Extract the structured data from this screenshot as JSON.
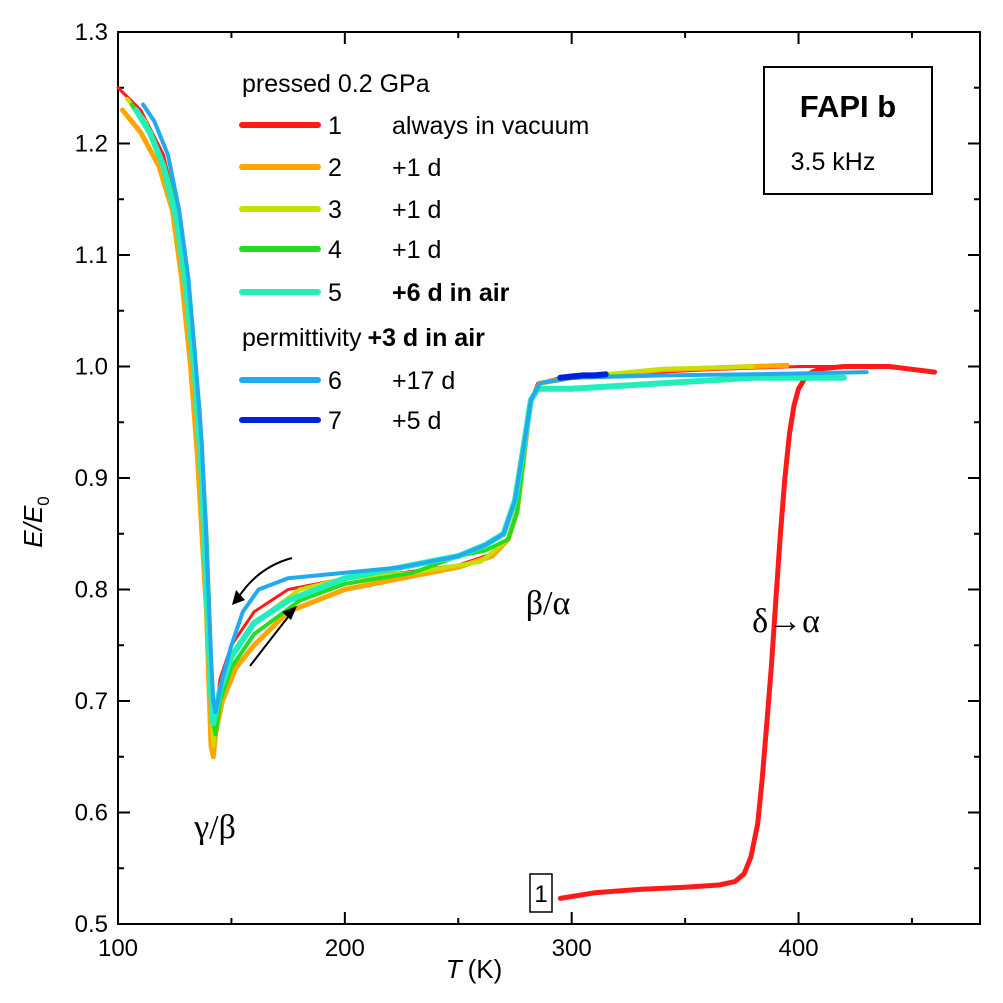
{
  "chart_data": {
    "type": "line",
    "title": "FAPI b",
    "subtitle": "3.5 kHz",
    "xlabel": "T",
    "xlabel_unit": "(K)",
    "ylabel_main": "E/E",
    "ylabel_sub": "0",
    "xlim": [
      100,
      480
    ],
    "ylim": [
      0.5,
      1.3
    ],
    "xticks": [
      100,
      200,
      300,
      400
    ],
    "xtick_labels": [
      "100",
      "200",
      "300",
      "400"
    ],
    "yticks": [
      0.5,
      0.6,
      0.7,
      0.8,
      0.9,
      1.0,
      1.1,
      1.2,
      1.3
    ],
    "ytick_labels": [
      "0.5",
      "0.6",
      "0.7",
      "0.8",
      "0.9",
      "1.0",
      "1.1",
      "1.2",
      "1.3"
    ],
    "legend": {
      "header1": "pressed 0.2 GPa",
      "header2_plain": "permittivity",
      "header2_bold": "+3 d in air",
      "entries": [
        {
          "num": "1",
          "label": "always in vacuum",
          "bold": false,
          "color": "#ff1a1a"
        },
        {
          "num": "2",
          "label": "+1 d",
          "bold": false,
          "color": "#ffa500"
        },
        {
          "num": "3",
          "label": "+1 d",
          "bold": false,
          "color": "#c8e000"
        },
        {
          "num": "4",
          "label": "+1 d",
          "bold": false,
          "color": "#22dd22"
        },
        {
          "num": "5",
          "label": "+6 d in air",
          "bold": true,
          "color": "#22eebb"
        },
        {
          "num": "6",
          "label": "+17 d",
          "bold": false,
          "color": "#22aaee"
        },
        {
          "num": "7",
          "label": "+5 d",
          "bold": false,
          "color": "#0022dd"
        }
      ]
    },
    "annotations": {
      "gamma_beta": "γ/β",
      "beta_alpha": "β/α",
      "delta_alpha": "δ→α",
      "curve1_label": "1"
    },
    "series": [
      {
        "name": "1",
        "color": "#ff1a1a",
        "width": 5,
        "x": [
          295,
          310,
          330,
          350,
          365,
          372,
          376,
          379,
          382,
          384,
          386,
          388,
          390,
          392,
          394,
          396,
          398,
          400,
          403,
          406,
          410,
          420,
          440,
          460
        ],
        "y": [
          0.523,
          0.528,
          0.531,
          0.533,
          0.535,
          0.538,
          0.545,
          0.56,
          0.59,
          0.63,
          0.68,
          0.73,
          0.79,
          0.85,
          0.9,
          0.94,
          0.965,
          0.98,
          0.99,
          0.995,
          0.998,
          1.0,
          1.0,
          0.995
        ]
      },
      {
        "name": "1-full",
        "color": "#ff1a1a",
        "width": 3,
        "x": [
          100,
          110,
          120,
          126,
          130,
          134,
          137,
          139,
          140,
          141,
          142,
          143,
          145,
          150,
          160,
          175,
          200,
          225,
          250,
          265,
          272,
          276,
          279,
          282,
          285,
          295,
          320,
          360,
          400,
          420
        ],
        "y": [
          1.25,
          1.23,
          1.19,
          1.14,
          1.08,
          1.0,
          0.9,
          0.82,
          0.76,
          0.7,
          0.67,
          0.69,
          0.72,
          0.75,
          0.78,
          0.8,
          0.81,
          0.815,
          0.822,
          0.832,
          0.845,
          0.87,
          0.92,
          0.97,
          0.985,
          0.99,
          0.993,
          0.997,
          1.0,
          1.0
        ]
      },
      {
        "name": "2",
        "color": "#ffa500",
        "width": 5,
        "x": [
          102,
          110,
          118,
          124,
          128,
          132,
          135,
          137,
          139,
          140,
          141,
          142,
          143,
          146,
          152,
          160,
          175,
          200,
          225,
          250,
          265,
          272,
          276,
          279,
          282,
          286,
          300,
          340,
          380,
          395
        ],
        "y": [
          1.23,
          1.21,
          1.18,
          1.14,
          1.08,
          1.0,
          0.92,
          0.85,
          0.78,
          0.72,
          0.66,
          0.65,
          0.67,
          0.7,
          0.73,
          0.75,
          0.78,
          0.8,
          0.81,
          0.82,
          0.83,
          0.845,
          0.87,
          0.92,
          0.97,
          0.985,
          0.99,
          0.997,
          1.0,
          1.001
        ]
      },
      {
        "name": "3",
        "color": "#c8e000",
        "width": 4,
        "x": [
          104,
          112,
          120,
          126,
          130,
          134,
          137,
          139,
          141,
          142,
          143,
          145,
          150,
          160,
          180,
          200,
          230,
          260,
          272,
          276,
          279,
          282,
          286,
          300,
          340,
          380
        ],
        "y": [
          1.24,
          1.22,
          1.18,
          1.13,
          1.07,
          0.99,
          0.9,
          0.8,
          0.7,
          0.66,
          0.68,
          0.71,
          0.74,
          0.77,
          0.8,
          0.81,
          0.815,
          0.825,
          0.845,
          0.87,
          0.92,
          0.97,
          0.985,
          0.99,
          0.998,
          1.0
        ]
      },
      {
        "name": "4",
        "color": "#22dd22",
        "width": 4,
        "x": [
          106,
          114,
          122,
          128,
          132,
          136,
          139,
          141,
          142,
          143,
          145,
          150,
          160,
          180,
          200,
          230,
          250,
          262,
          272,
          276,
          279,
          282,
          286,
          300,
          330
        ],
        "y": [
          1.235,
          1.21,
          1.17,
          1.12,
          1.05,
          0.96,
          0.85,
          0.74,
          0.68,
          0.67,
          0.7,
          0.73,
          0.76,
          0.79,
          0.805,
          0.815,
          0.83,
          0.835,
          0.845,
          0.87,
          0.92,
          0.97,
          0.985,
          0.99,
          0.992
        ]
      },
      {
        "name": "5",
        "color": "#22eebb",
        "width": 6,
        "x": [
          108,
          114,
          120,
          126,
          130,
          134,
          137,
          139,
          141,
          142,
          143,
          145,
          150,
          160,
          175,
          200,
          225,
          250,
          262,
          270,
          275,
          279,
          282,
          285,
          290,
          300,
          340,
          380,
          420
        ],
        "y": [
          1.23,
          1.21,
          1.18,
          1.13,
          1.07,
          0.99,
          0.9,
          0.8,
          0.71,
          0.68,
          0.69,
          0.71,
          0.74,
          0.77,
          0.79,
          0.81,
          0.82,
          0.83,
          0.84,
          0.85,
          0.88,
          0.93,
          0.97,
          0.98,
          0.98,
          0.98,
          0.985,
          0.99,
          0.99
        ]
      },
      {
        "name": "6",
        "color": "#22aaee",
        "width": 4,
        "x": [
          111,
          116,
          122,
          127,
          131,
          134,
          137,
          139,
          141,
          142,
          143,
          144,
          146,
          150,
          155,
          162,
          175,
          200,
          225,
          250,
          262,
          270,
          275,
          279,
          282,
          286,
          300,
          340,
          380,
          430
        ],
        "y": [
          1.235,
          1.22,
          1.19,
          1.14,
          1.08,
          1.01,
          0.93,
          0.84,
          0.74,
          0.7,
          0.69,
          0.7,
          0.72,
          0.75,
          0.78,
          0.8,
          0.81,
          0.815,
          0.82,
          0.83,
          0.84,
          0.85,
          0.88,
          0.93,
          0.97,
          0.985,
          0.99,
          0.992,
          0.993,
          0.995
        ]
      },
      {
        "name": "7",
        "color": "#0022dd",
        "width": 6,
        "x": [
          295,
          300,
          305,
          310,
          315
        ],
        "y": [
          0.99,
          0.991,
          0.992,
          0.992,
          0.993
        ]
      }
    ]
  }
}
